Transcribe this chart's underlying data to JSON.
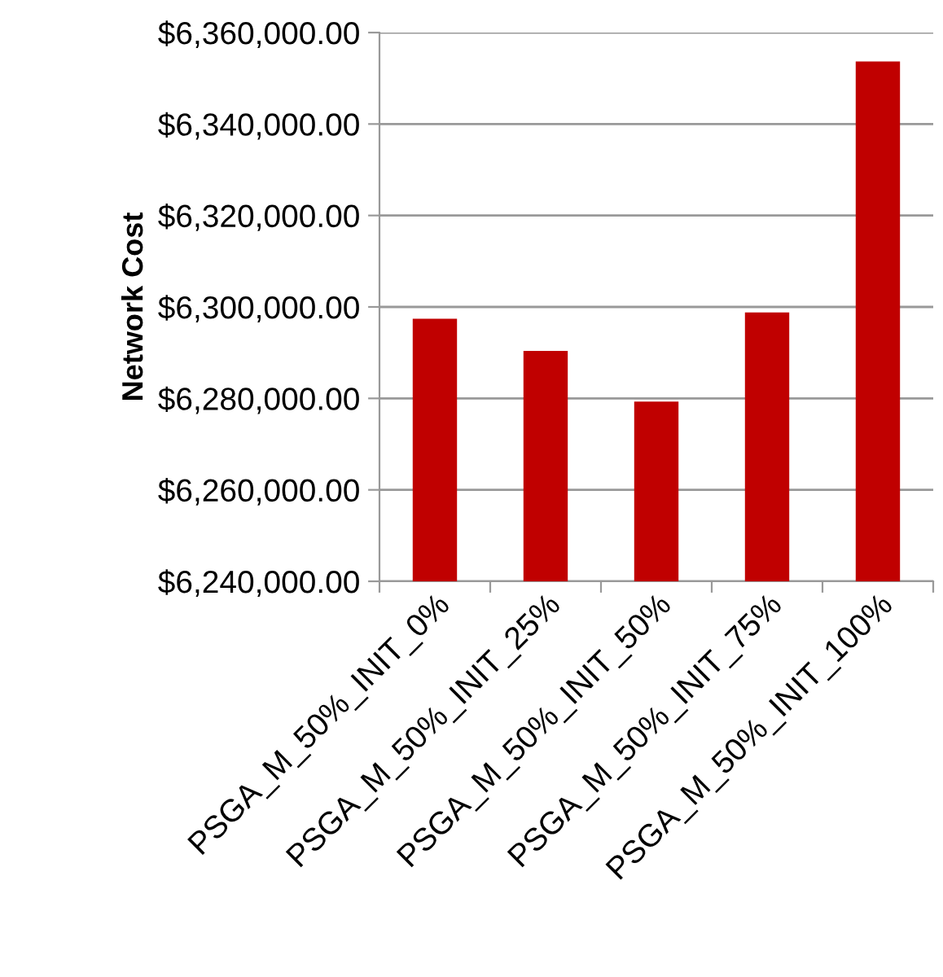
{
  "chart_data": {
    "type": "bar",
    "ylabel": "Network Cost",
    "categories": [
      "PSGA_M_50%_INIT_0%",
      "PSGA_M_50%_INIT_25%",
      "PSGA_M_50%_INIT_50%",
      "PSGA_M_50%_INIT_75%",
      "PSGA_M_50%_INIT_100%"
    ],
    "values": [
      6297400,
      6290400,
      6279300,
      6298800,
      6353700
    ],
    "color": "#c00000",
    "ylim": [
      6240000,
      6360000
    ],
    "yticks": [
      {
        "value": 6240000,
        "label": "$6,240,000.00"
      },
      {
        "value": 6260000,
        "label": "$6,260,000.00"
      },
      {
        "value": 6280000,
        "label": "$6,280,000.00"
      },
      {
        "value": 6300000,
        "label": "$6,300,000.00"
      },
      {
        "value": 6320000,
        "label": "$6,320,000.00"
      },
      {
        "value": 6340000,
        "label": "$6,340,000.00"
      },
      {
        "value": 6360000,
        "label": "$6,360,000.00"
      }
    ],
    "grid": "y",
    "legend": false
  }
}
